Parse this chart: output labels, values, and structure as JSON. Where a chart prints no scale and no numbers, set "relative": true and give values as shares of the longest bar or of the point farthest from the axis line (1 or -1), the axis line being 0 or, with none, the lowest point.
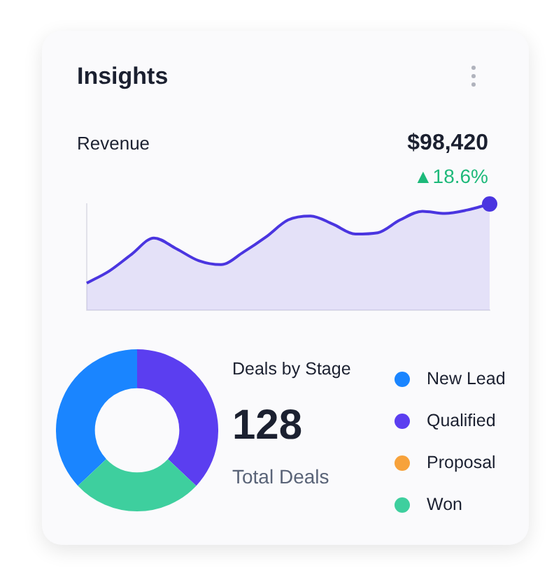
{
  "chart_data": [
    {
      "type": "area",
      "title": "Insights",
      "subtitle": "Revenue",
      "relative": true,
      "categories": [
        null,
        null,
        null,
        null,
        null,
        null,
        null,
        null,
        null,
        null,
        null,
        null,
        null,
        null,
        null,
        null,
        null,
        null,
        null
      ],
      "series": [
        {
          "color": "#4a35e0",
          "values": [
            0.255,
            0.368,
            0.526,
            0.68,
            0.579,
            0.466,
            0.429,
            0.547,
            0.688,
            0.85,
            0.887,
            0.81,
            0.717,
            0.729,
            0.85,
            0.931,
            0.911,
            0.943,
            1
          ]
        }
      ],
      "annotations": [
        "$98,420",
        "▲18.6%"
      ]
    },
    {
      "type": "donut",
      "title": "Deals by Stage",
      "legend": "right",
      "categories": [
        "New Lead",
        "Qualified",
        "Proposal",
        "Won"
      ],
      "values": [
        37,
        37,
        0,
        26
      ],
      "colors": [
        "#1a85ff",
        "#5b3ef0",
        "#f7a23b",
        "#3ecf9e"
      ],
      "annotations": [
        "128",
        "Total Deals"
      ]
    }
  ]
}
